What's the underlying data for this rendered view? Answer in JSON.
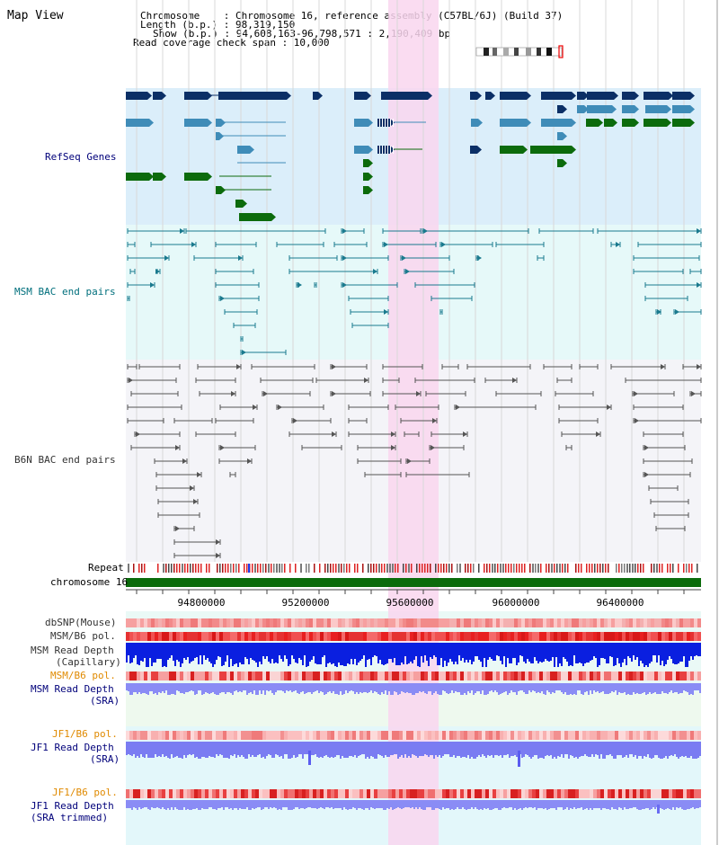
{
  "title": "Map View",
  "header": {
    "line1": "Chromosome    : Chromosome 16, reference assembly (C57BL/6J) (Build 37)",
    "line2": "Length (b.p.) : 98,319,150",
    "line3": "Show (b.p.) : 94,608,163-96,798,571 : 2,190,409 bp",
    "line4": "Read coverage check span : 10,000"
  },
  "tracks": {
    "refseq": "RefSeq Genes",
    "msm_bac": "MSM BAC end pairs",
    "b6n_bac": "B6N BAC end pairs",
    "repeat": "Repeat",
    "chromosome": "chromosome 16",
    "dbsnp": "dbSNP(Mouse)",
    "msmb6_pol_1": "MSM/B6 pol.",
    "msm_depth_cap_1": "MSM Read Depth",
    "msm_depth_cap_2": "(Capillary)",
    "msmb6_pol_2": "MSM/B6 pol.",
    "msm_depth_sra_1": "MSM Read Depth",
    "msm_depth_sra_2": "(SRA)",
    "jf1_pol_1": "JF1/B6 pol.",
    "jf1_depth_1": "JF1 Read Depth",
    "jf1_depth_2": "(SRA)",
    "jf1_pol_2": "JF1/B6 pol.",
    "jf1_depth_trim_1": "JF1 Read Depth",
    "jf1_depth_trim_2": "(SRA trimmed)"
  },
  "axis": {
    "ticks": [
      "94800000",
      "95200000",
      "95600000",
      "96000000",
      "96400000"
    ]
  },
  "colors": {
    "refseq_bg": "#dbeefa",
    "msm_bg": "#e6f9f9",
    "b6n_bg": "#f4f4f8",
    "highlight": "#f9d6ef",
    "gene_dark": "#0b2f66",
    "gene_mid": "#3f8cb8",
    "gene_green": "#0c6b0c",
    "msm_pair": "#1a7a8e",
    "b6n_pair": "#555555",
    "chrom_bar": "#0b6b0b",
    "depth_blue": "#0a1fe0",
    "depth_light": "#8a8cf5"
  }
}
